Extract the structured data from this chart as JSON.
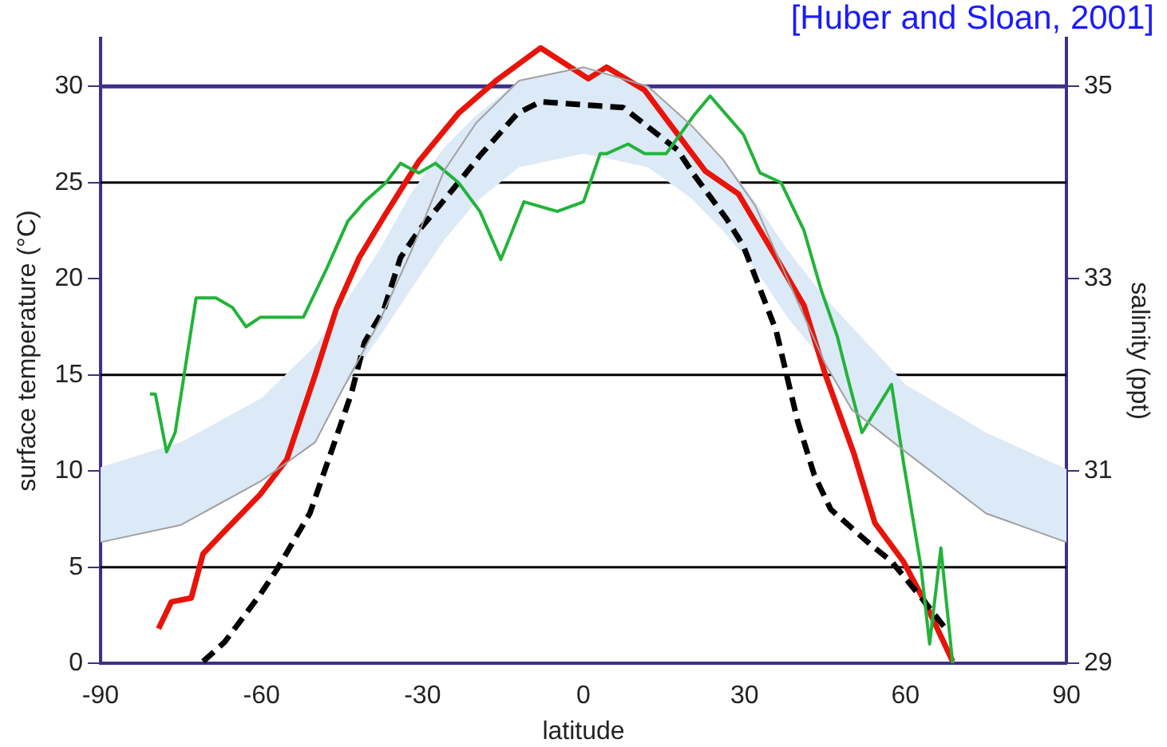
{
  "chart_data": {
    "type": "line",
    "xlabel": "latitude",
    "ylabel": "surface temperature (°C)",
    "y2label": "salinity (ppt)",
    "annotations": [
      "[Huber and Sloan, 2001]"
    ],
    "xlim": [
      -90,
      90
    ],
    "xticks": [
      -90,
      -60,
      -30,
      0,
      30,
      60,
      90
    ],
    "ylim": [
      0,
      32.5
    ],
    "yticks": [
      0,
      5,
      10,
      15,
      20,
      25,
      30
    ],
    "y2lim": [
      29,
      35.5
    ],
    "y2ticks": [
      29,
      31,
      33,
      35
    ],
    "legend": false,
    "grid": false,
    "marker": "none",
    "ref_lines": [
      {
        "axis": "y",
        "value": 5,
        "color": "#000000"
      },
      {
        "axis": "y",
        "value": 15,
        "color": "#000000"
      },
      {
        "axis": "y",
        "value": 25,
        "color": "#000000"
      },
      {
        "axis": "y",
        "value": 30,
        "color": "#3d2f8a"
      }
    ],
    "series": [
      {
        "color": "#a0a0a0",
        "line_style": "solid",
        "x": [
          -90,
          -75,
          -60,
          -50,
          -45,
          -38,
          -32,
          -26,
          -20,
          -12,
          0,
          12,
          20,
          26,
          32,
          38,
          45,
          50,
          60,
          75,
          90
        ],
        "values": [
          6.3,
          7.2,
          9.5,
          11.5,
          14.2,
          17.8,
          21.5,
          25.6,
          28.1,
          30.3,
          31.0,
          30.0,
          28.0,
          26.2,
          23.8,
          20.0,
          15.6,
          13.2,
          11.0,
          7.8,
          6.3
        ],
        "lower": [
          6.3,
          7.2,
          9.5,
          11.5,
          14.2,
          17.0,
          19.5,
          22.0,
          24.0,
          25.8,
          26.5,
          25.8,
          24.2,
          22.5,
          20.5,
          18.0,
          15.6,
          13.2,
          11.0,
          7.8,
          6.3
        ],
        "upper": [
          10.2,
          11.5,
          13.8,
          16.5,
          18.5,
          21.5,
          24.5,
          26.8,
          28.5,
          30.3,
          31.0,
          30.0,
          28.0,
          26.2,
          24.0,
          21.5,
          19.0,
          17.5,
          14.5,
          12.0,
          10.1
        ]
      },
      {
        "color": "#22b33a",
        "line_style": "solid",
        "axis": "y2",
        "x": [
          -80.8,
          -79.8,
          -77.7,
          -76.1,
          -72.2,
          -68.5,
          -65.4,
          -62.9,
          -60.2,
          -58.3,
          -56.8,
          -52.2,
          -47.9,
          -43.9,
          -40.8,
          -36.8,
          -34.1,
          -30.7,
          -27.6,
          -23.3,
          -19.3,
          -15.4,
          -11.1,
          -4.9,
          0,
          3.1,
          4.3,
          8.3,
          11.4,
          15.4,
          20.6,
          23.6,
          26.7,
          29.8,
          32.9,
          36.8,
          41.1,
          44.2,
          47.3,
          49.1,
          51.9,
          57.4,
          59.6,
          62.9,
          64.5,
          66.6,
          68.8
        ],
        "values": [
          31.8,
          31.8,
          31.2,
          31.4,
          32.8,
          32.8,
          32.7,
          32.5,
          32.6,
          32.6,
          32.6,
          32.6,
          33.1,
          33.6,
          33.8,
          34.0,
          34.2,
          34.1,
          34.2,
          34.0,
          33.7,
          33.2,
          33.8,
          33.7,
          33.8,
          34.3,
          34.3,
          34.4,
          34.3,
          34.3,
          34.7,
          34.9,
          34.7,
          34.5,
          34.1,
          34.0,
          33.5,
          32.9,
          32.4,
          32.0,
          31.4,
          31.9,
          31.1,
          30.0,
          29.2,
          30.2,
          29.0
        ]
      },
      {
        "color": "#000000",
        "line_style": "dashed",
        "x": [
          -70.9,
          -66.9,
          -60.2,
          -57.1,
          -51,
          -45.4,
          -43.3,
          -40.8,
          -37.2,
          -34.1,
          -30.7,
          -23.3,
          -19.3,
          -12.3,
          -8,
          2.1,
          7.4,
          17.5,
          20.6,
          26.7,
          29.8,
          35.9,
          39.9,
          43,
          46.1,
          53.4,
          57.4,
          63.6,
          67.2
        ],
        "values": [
          0.1,
          1.1,
          3.6,
          4.9,
          7.8,
          12.3,
          14.0,
          16.7,
          18.4,
          21.1,
          22.5,
          25.0,
          26.4,
          28.6,
          29.2,
          29.0,
          28.9,
          26.7,
          25.4,
          23.1,
          21.7,
          17.3,
          12.6,
          9.8,
          8.0,
          6.2,
          5.3,
          3.2,
          1.9
        ]
      },
      {
        "color": "#e8140a",
        "line_style": "solid",
        "x": [
          -79.2,
          -76.8,
          -73.1,
          -70.9,
          -67.5,
          -60.2,
          -55.3,
          -50,
          -46.1,
          -41.8,
          -36.8,
          -30.7,
          -23.3,
          -16.3,
          -8,
          0.9,
          4.3,
          11.4,
          22.7,
          28.9,
          35.9,
          41.1,
          45.1,
          50.4,
          54.3,
          59.6,
          63.6,
          68.8
        ],
        "values": [
          1.8,
          3.2,
          3.4,
          5.7,
          6.7,
          8.8,
          10.6,
          15.0,
          18.4,
          21.1,
          23.4,
          26.1,
          28.6,
          30.3,
          32.0,
          30.4,
          31.0,
          29.8,
          25.6,
          24.4,
          21.1,
          18.6,
          15.0,
          10.9,
          7.3,
          5.3,
          3.2,
          0.1
        ]
      }
    ]
  }
}
